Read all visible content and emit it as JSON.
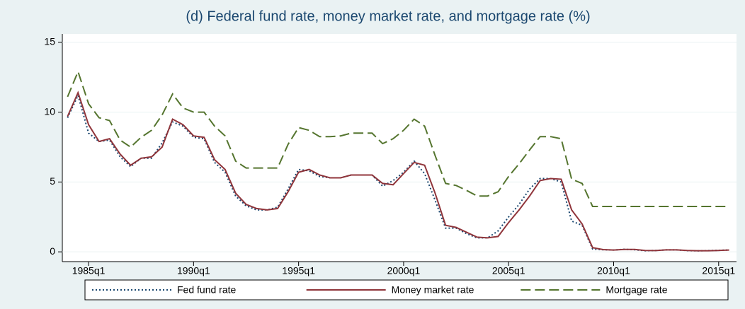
{
  "chart_data": {
    "type": "line",
    "title": "(d) Federal fund rate, money market rate, and mortgage rate (%)",
    "x": [
      1984.0,
      1984.5,
      1985.0,
      1985.5,
      1986.0,
      1986.5,
      1987.0,
      1987.5,
      1988.0,
      1988.5,
      1989.0,
      1989.5,
      1990.0,
      1990.5,
      1991.0,
      1991.5,
      1992.0,
      1992.5,
      1993.0,
      1993.5,
      1994.0,
      1994.5,
      1995.0,
      1995.5,
      1996.0,
      1996.5,
      1997.0,
      1997.5,
      1998.0,
      1998.5,
      1999.0,
      1999.5,
      2000.0,
      2000.5,
      2001.0,
      2001.5,
      2002.0,
      2002.5,
      2003.0,
      2003.5,
      2004.0,
      2004.5,
      2005.0,
      2005.5,
      2006.0,
      2006.5,
      2007.0,
      2007.5,
      2008.0,
      2008.5,
      2009.0,
      2009.5,
      2010.0,
      2010.5,
      2011.0,
      2011.5,
      2012.0,
      2012.5,
      2013.0,
      2013.5,
      2014.0,
      2014.5,
      2015.0,
      2015.5
    ],
    "series": [
      {
        "name": "Fed fund rate",
        "color": "#1a476f",
        "dash": "2,3",
        "values": [
          9.6,
          11.2,
          8.5,
          7.9,
          8.0,
          6.8,
          6.1,
          6.7,
          6.7,
          7.8,
          9.3,
          9.0,
          8.2,
          8.1,
          6.4,
          5.7,
          4.0,
          3.3,
          3.0,
          3.0,
          3.2,
          4.5,
          5.9,
          5.8,
          5.4,
          5.3,
          5.3,
          5.5,
          5.5,
          5.5,
          4.7,
          5.1,
          5.7,
          6.5,
          5.6,
          3.7,
          1.7,
          1.7,
          1.3,
          1.0,
          1.0,
          1.5,
          2.5,
          3.4,
          4.5,
          5.25,
          5.25,
          5.0,
          2.2,
          1.9,
          0.2,
          0.15,
          0.13,
          0.18,
          0.15,
          0.08,
          0.1,
          0.14,
          0.14,
          0.09,
          0.07,
          0.09,
          0.11,
          0.13
        ]
      },
      {
        "name": "Money market rate",
        "color": "#90353b",
        "dash": "none",
        "values": [
          9.7,
          11.4,
          9.1,
          7.9,
          8.1,
          7.0,
          6.2,
          6.7,
          6.8,
          7.5,
          9.5,
          9.1,
          8.3,
          8.2,
          6.6,
          5.9,
          4.2,
          3.4,
          3.1,
          3.0,
          3.1,
          4.3,
          5.7,
          5.9,
          5.5,
          5.3,
          5.3,
          5.5,
          5.5,
          5.5,
          4.9,
          4.8,
          5.6,
          6.4,
          6.2,
          4.2,
          1.9,
          1.75,
          1.4,
          1.05,
          1.0,
          1.1,
          2.1,
          3.0,
          4.0,
          5.1,
          5.25,
          5.2,
          3.0,
          2.0,
          0.3,
          0.16,
          0.13,
          0.17,
          0.17,
          0.1,
          0.09,
          0.14,
          0.14,
          0.1,
          0.08,
          0.08,
          0.1,
          0.13
        ]
      },
      {
        "name": "Mortgage rate",
        "color": "#55752f",
        "dash": "14,6",
        "values": [
          11.1,
          12.9,
          10.6,
          9.6,
          9.4,
          8.0,
          7.5,
          8.2,
          8.7,
          9.8,
          11.3,
          10.3,
          10.0,
          10.0,
          9.0,
          8.3,
          6.5,
          6.0,
          6.0,
          6.0,
          6.0,
          7.7,
          8.9,
          8.7,
          8.25,
          8.25,
          8.3,
          8.5,
          8.5,
          8.5,
          7.75,
          8.1,
          8.7,
          9.5,
          9.0,
          6.9,
          4.9,
          4.75,
          4.4,
          4.0,
          4.0,
          4.3,
          5.4,
          6.3,
          7.3,
          8.25,
          8.25,
          8.1,
          5.2,
          4.9,
          3.25,
          3.25,
          3.25,
          3.25,
          3.25,
          3.25,
          3.25,
          3.25,
          3.25,
          3.25,
          3.25,
          3.25,
          3.25,
          3.25
        ]
      }
    ],
    "xlim": [
      1983.75,
      2015.85
    ],
    "xticks": [
      {
        "value": 1985,
        "label": "1985q1"
      },
      {
        "value": 1990,
        "label": "1990q1"
      },
      {
        "value": 1995,
        "label": "1995q1"
      },
      {
        "value": 2000,
        "label": "2000q1"
      },
      {
        "value": 2005,
        "label": "2005q1"
      },
      {
        "value": 2010,
        "label": "2010q1"
      },
      {
        "value": 2015,
        "label": "2015q1"
      }
    ],
    "ylim": [
      -0.7,
      15.6
    ],
    "yticks": [
      0,
      5,
      10,
      15
    ],
    "grid": true,
    "legend": "bottom"
  }
}
